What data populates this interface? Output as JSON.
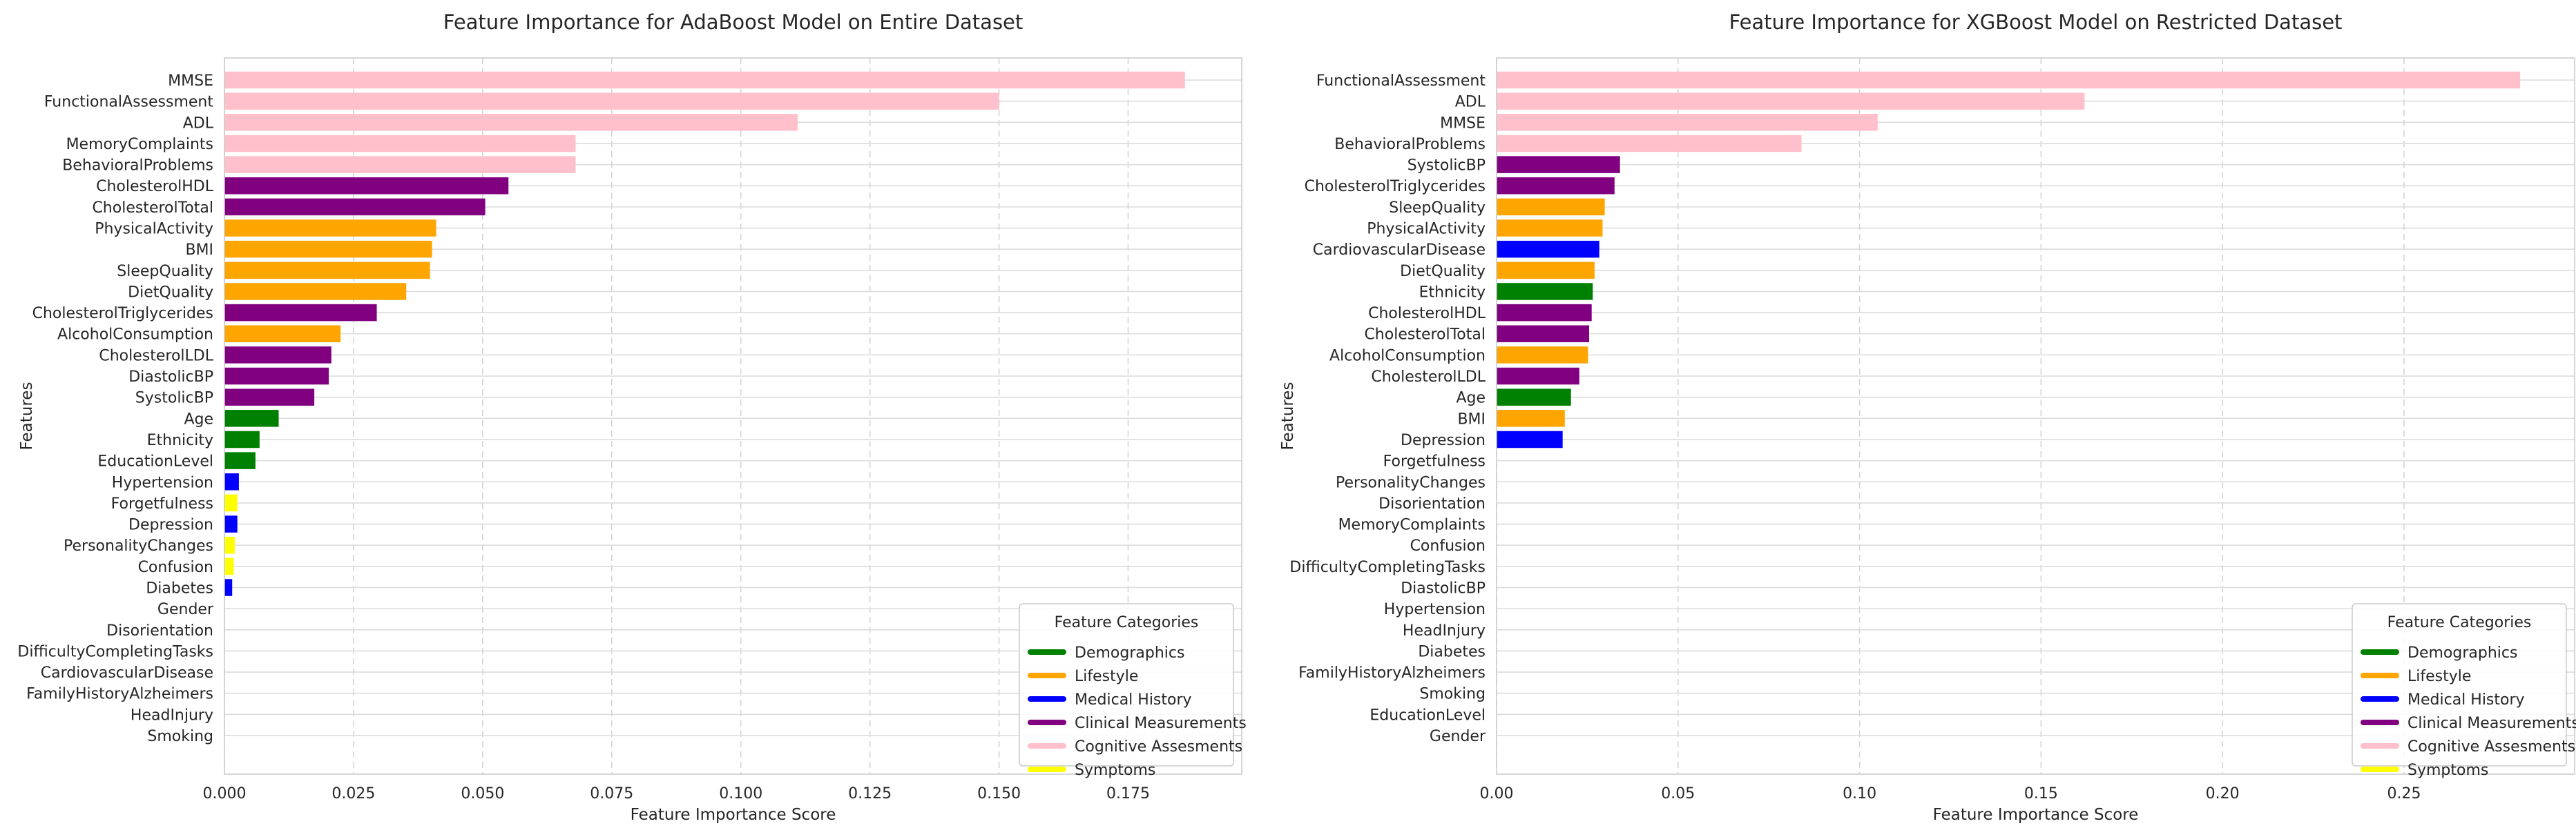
{
  "chart_data": [
    {
      "type": "bar",
      "orientation": "horizontal",
      "title": "Feature Importance for AdaBoost Model on Entire Dataset",
      "xlabel": "Feature Importance Score",
      "ylabel": "Features",
      "xlim": [
        0,
        0.197
      ],
      "xticks": [
        0.0,
        0.025,
        0.05,
        0.075,
        0.1,
        0.125,
        0.15,
        0.175
      ],
      "xtick_labels": [
        "0.000",
        "0.025",
        "0.050",
        "0.075",
        "0.100",
        "0.125",
        "0.150",
        "0.175"
      ],
      "grid": true,
      "legend_position": "lower-right",
      "categories": [
        "MMSE",
        "FunctionalAssessment",
        "ADL",
        "MemoryComplaints",
        "BehavioralProblems",
        "CholesterolHDL",
        "CholesterolTotal",
        "PhysicalActivity",
        "BMI",
        "SleepQuality",
        "DietQuality",
        "CholesterolTriglycerides",
        "AlcoholConsumption",
        "CholesterolLDL",
        "DiastolicBP",
        "SystolicBP",
        "Age",
        "Ethnicity",
        "EducationLevel",
        "Hypertension",
        "Forgetfulness",
        "Depression",
        "PersonalityChanges",
        "Confusion",
        "Diabetes",
        "Gender",
        "Disorientation",
        "DifficultyCompletingTasks",
        "CardiovascularDisease",
        "FamilyHistoryAlzheimers",
        "HeadInjury",
        "Smoking"
      ],
      "values": [
        0.186,
        0.15,
        0.111,
        0.068,
        0.068,
        0.055,
        0.0505,
        0.041,
        0.0402,
        0.0398,
        0.0352,
        0.0295,
        0.0225,
        0.0207,
        0.0202,
        0.0174,
        0.0105,
        0.0068,
        0.006,
        0.0028,
        0.0025,
        0.0025,
        0.002,
        0.0018,
        0.0015,
        0,
        0,
        0,
        0,
        0,
        0,
        0
      ],
      "feature_category": [
        "Cognitive Assesments",
        "Cognitive Assesments",
        "Cognitive Assesments",
        "Cognitive Assesments",
        "Cognitive Assesments",
        "Clinical Measurements",
        "Clinical Measurements",
        "Lifestyle",
        "Lifestyle",
        "Lifestyle",
        "Lifestyle",
        "Clinical Measurements",
        "Lifestyle",
        "Clinical Measurements",
        "Clinical Measurements",
        "Clinical Measurements",
        "Demographics",
        "Demographics",
        "Demographics",
        "Medical History",
        "Symptoms",
        "Medical History",
        "Symptoms",
        "Symptoms",
        "Medical History",
        "Demographics",
        "Symptoms",
        "Symptoms",
        "Medical History",
        "Medical History",
        "Medical History",
        "Lifestyle"
      ]
    },
    {
      "type": "bar",
      "orientation": "horizontal",
      "title": "Feature Importance for XGBoost Model on Restricted Dataset",
      "xlabel": "Feature Importance Score",
      "ylabel": "Features",
      "xlim": [
        0,
        0.297
      ],
      "xticks": [
        0.0,
        0.05,
        0.1,
        0.15,
        0.2,
        0.25
      ],
      "xtick_labels": [
        "0.00",
        "0.05",
        "0.10",
        "0.15",
        "0.20",
        "0.25"
      ],
      "grid": true,
      "legend_position": "lower-right",
      "categories": [
        "FunctionalAssessment",
        "ADL",
        "MMSE",
        "BehavioralProblems",
        "SystolicBP",
        "CholesterolTriglycerides",
        "SleepQuality",
        "PhysicalActivity",
        "CardiovascularDisease",
        "DietQuality",
        "Ethnicity",
        "CholesterolHDL",
        "CholesterolTotal",
        "AlcoholConsumption",
        "CholesterolLDL",
        "Age",
        "BMI",
        "Depression",
        "Forgetfulness",
        "PersonalityChanges",
        "Disorientation",
        "MemoryComplaints",
        "Confusion",
        "DifficultyCompletingTasks",
        "DiastolicBP",
        "Hypertension",
        "HeadInjury",
        "Diabetes",
        "FamilyHistoryAlzheimers",
        "Smoking",
        "EducationLevel",
        "Gender"
      ],
      "values": [
        0.282,
        0.162,
        0.105,
        0.084,
        0.034,
        0.0325,
        0.0298,
        0.0292,
        0.0283,
        0.027,
        0.0265,
        0.0262,
        0.0255,
        0.0252,
        0.0228,
        0.0205,
        0.0188,
        0.0182,
        0,
        0,
        0,
        0,
        0,
        0,
        0,
        0,
        0,
        0,
        0,
        0,
        0,
        0
      ],
      "feature_category": [
        "Cognitive Assesments",
        "Cognitive Assesments",
        "Cognitive Assesments",
        "Cognitive Assesments",
        "Clinical Measurements",
        "Clinical Measurements",
        "Lifestyle",
        "Lifestyle",
        "Medical History",
        "Lifestyle",
        "Demographics",
        "Clinical Measurements",
        "Clinical Measurements",
        "Lifestyle",
        "Clinical Measurements",
        "Demographics",
        "Lifestyle",
        "Medical History",
        "Symptoms",
        "Symptoms",
        "Symptoms",
        "Cognitive Assesments",
        "Symptoms",
        "Symptoms",
        "Clinical Measurements",
        "Medical History",
        "Medical History",
        "Medical History",
        "Medical History",
        "Lifestyle",
        "Demographics",
        "Demographics"
      ]
    }
  ],
  "legend": {
    "title": "Feature Categories",
    "entries": [
      {
        "label": "Demographics",
        "color": "#008000"
      },
      {
        "label": "Lifestyle",
        "color": "#ffa500"
      },
      {
        "label": "Medical History",
        "color": "#0000ff"
      },
      {
        "label": "Clinical Measurements",
        "color": "#800080"
      },
      {
        "label": "Cognitive Assesments",
        "color": "#ffc0cb"
      },
      {
        "label": "Symptoms",
        "color": "#ffff00"
      }
    ]
  }
}
